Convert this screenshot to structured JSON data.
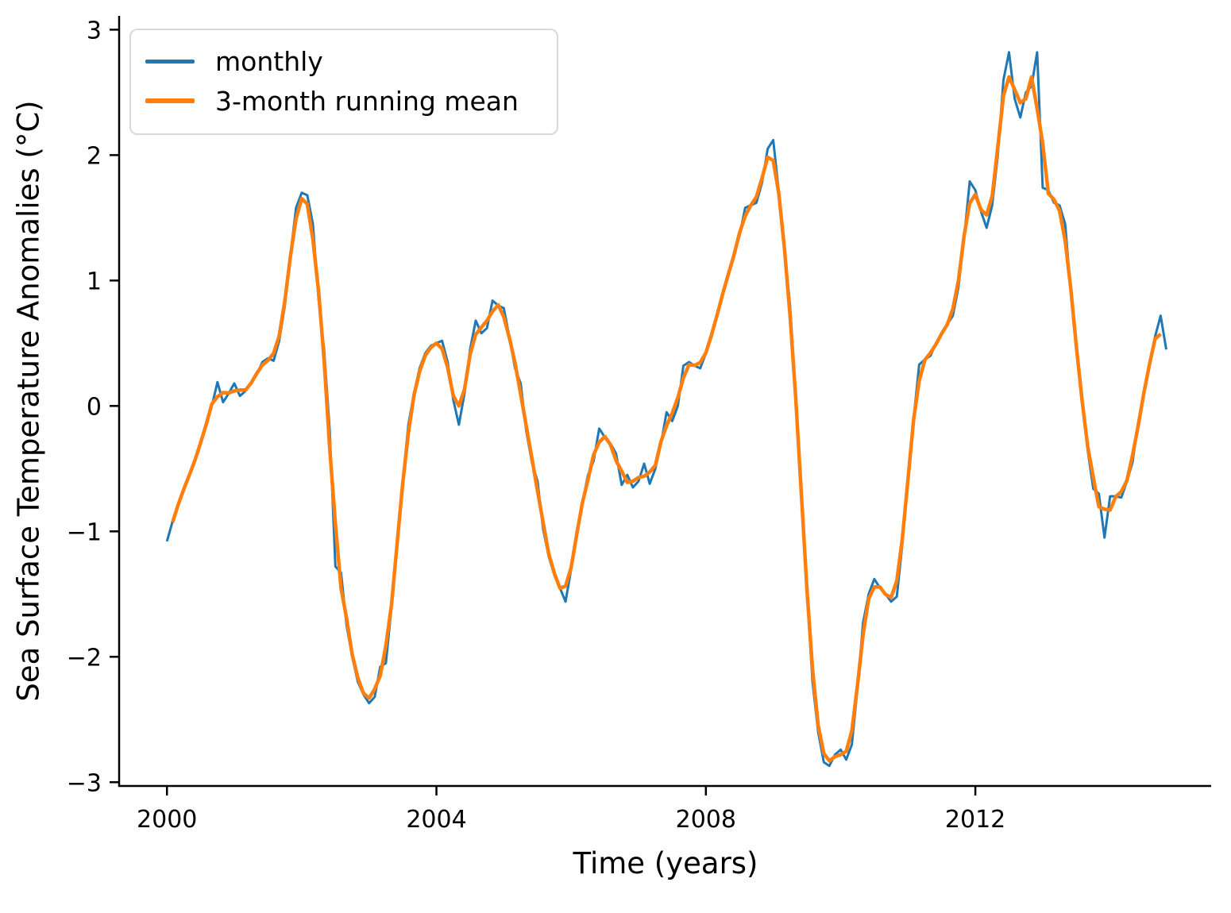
{
  "chart_data": {
    "type": "line",
    "title": "",
    "xlabel": "Time (years)",
    "ylabel": "Sea Surface Temperature Anomalies (°C)",
    "x_start_year": 2000.0,
    "x_step_years": 0.0833333,
    "xlim": [
      1999.29,
      2015.5
    ],
    "ylim": [
      -3.03,
      3.11
    ],
    "grid": false,
    "legend_position": "upper left",
    "xticks": [
      {
        "v": 2000,
        "label": "2000"
      },
      {
        "v": 2004,
        "label": "2004"
      },
      {
        "v": 2008,
        "label": "2008"
      },
      {
        "v": 2012,
        "label": "2012"
      }
    ],
    "yticks": [
      {
        "v": 3,
        "label": "3"
      },
      {
        "v": 2,
        "label": "2"
      },
      {
        "v": 1,
        "label": "1"
      },
      {
        "v": 0,
        "label": "0"
      },
      {
        "v": -1,
        "label": "−1"
      },
      {
        "v": -2,
        "label": "−2"
      },
      {
        "v": -3,
        "label": "−3"
      }
    ],
    "series": [
      {
        "name": "monthly",
        "color": "#1f77b4",
        "line_width": 3,
        "values": [
          -1.08,
          -0.92,
          -0.78,
          -0.66,
          -0.55,
          -0.44,
          -0.3,
          -0.14,
          0.0,
          0.19,
          0.03,
          0.1,
          0.18,
          0.08,
          0.12,
          0.18,
          0.25,
          0.35,
          0.38,
          0.36,
          0.52,
          0.8,
          1.2,
          1.58,
          1.7,
          1.68,
          1.45,
          0.85,
          0.45,
          -0.2,
          -1.28,
          -1.33,
          -1.75,
          -2.0,
          -2.2,
          -2.3,
          -2.37,
          -2.32,
          -2.08,
          -2.05,
          -1.6,
          -1.1,
          -0.6,
          -0.15,
          0.1,
          0.3,
          0.42,
          0.48,
          0.5,
          0.52,
          0.35,
          0.05,
          -0.15,
          0.1,
          0.45,
          0.68,
          0.58,
          0.62,
          0.84,
          0.8,
          0.78,
          0.55,
          0.3,
          0.18,
          -0.2,
          -0.45,
          -0.6,
          -0.98,
          -1.2,
          -1.35,
          -1.45,
          -1.56,
          -1.3,
          -1.0,
          -0.77,
          -0.55,
          -0.44,
          -0.18,
          -0.25,
          -0.3,
          -0.38,
          -0.63,
          -0.55,
          -0.65,
          -0.6,
          -0.46,
          -0.62,
          -0.5,
          -0.3,
          -0.05,
          -0.12,
          0.0,
          0.32,
          0.35,
          0.32,
          0.3,
          0.42,
          0.55,
          0.73,
          0.9,
          1.05,
          1.2,
          1.36,
          1.58,
          1.6,
          1.62,
          1.78,
          2.05,
          2.12,
          1.7,
          1.25,
          0.8,
          0.1,
          -0.7,
          -1.5,
          -2.2,
          -2.6,
          -2.84,
          -2.87,
          -2.78,
          -2.74,
          -2.82,
          -2.7,
          -2.25,
          -1.73,
          -1.5,
          -1.38,
          -1.45,
          -1.5,
          -1.56,
          -1.52,
          -1.1,
          -0.55,
          -0.1,
          0.33,
          0.37,
          0.4,
          0.5,
          0.58,
          0.65,
          0.72,
          0.95,
          1.34,
          1.79,
          1.72,
          1.55,
          1.42,
          1.6,
          2.0,
          2.6,
          2.82,
          2.45,
          2.3,
          2.5,
          2.55,
          2.82,
          1.74,
          1.72,
          1.62,
          1.6,
          1.45,
          0.9,
          0.45,
          0.05,
          -0.35,
          -0.66,
          -0.7,
          -1.05,
          -0.72,
          -0.72,
          -0.73,
          -0.6,
          -0.45,
          -0.13,
          0.1,
          0.33,
          0.55,
          0.72,
          0.45
        ]
      },
      {
        "name": "3-month running mean",
        "color": "#ff7f0e",
        "line_width": 4.5,
        "derived": "centered 3-point running mean of the monthly series"
      }
    ]
  }
}
